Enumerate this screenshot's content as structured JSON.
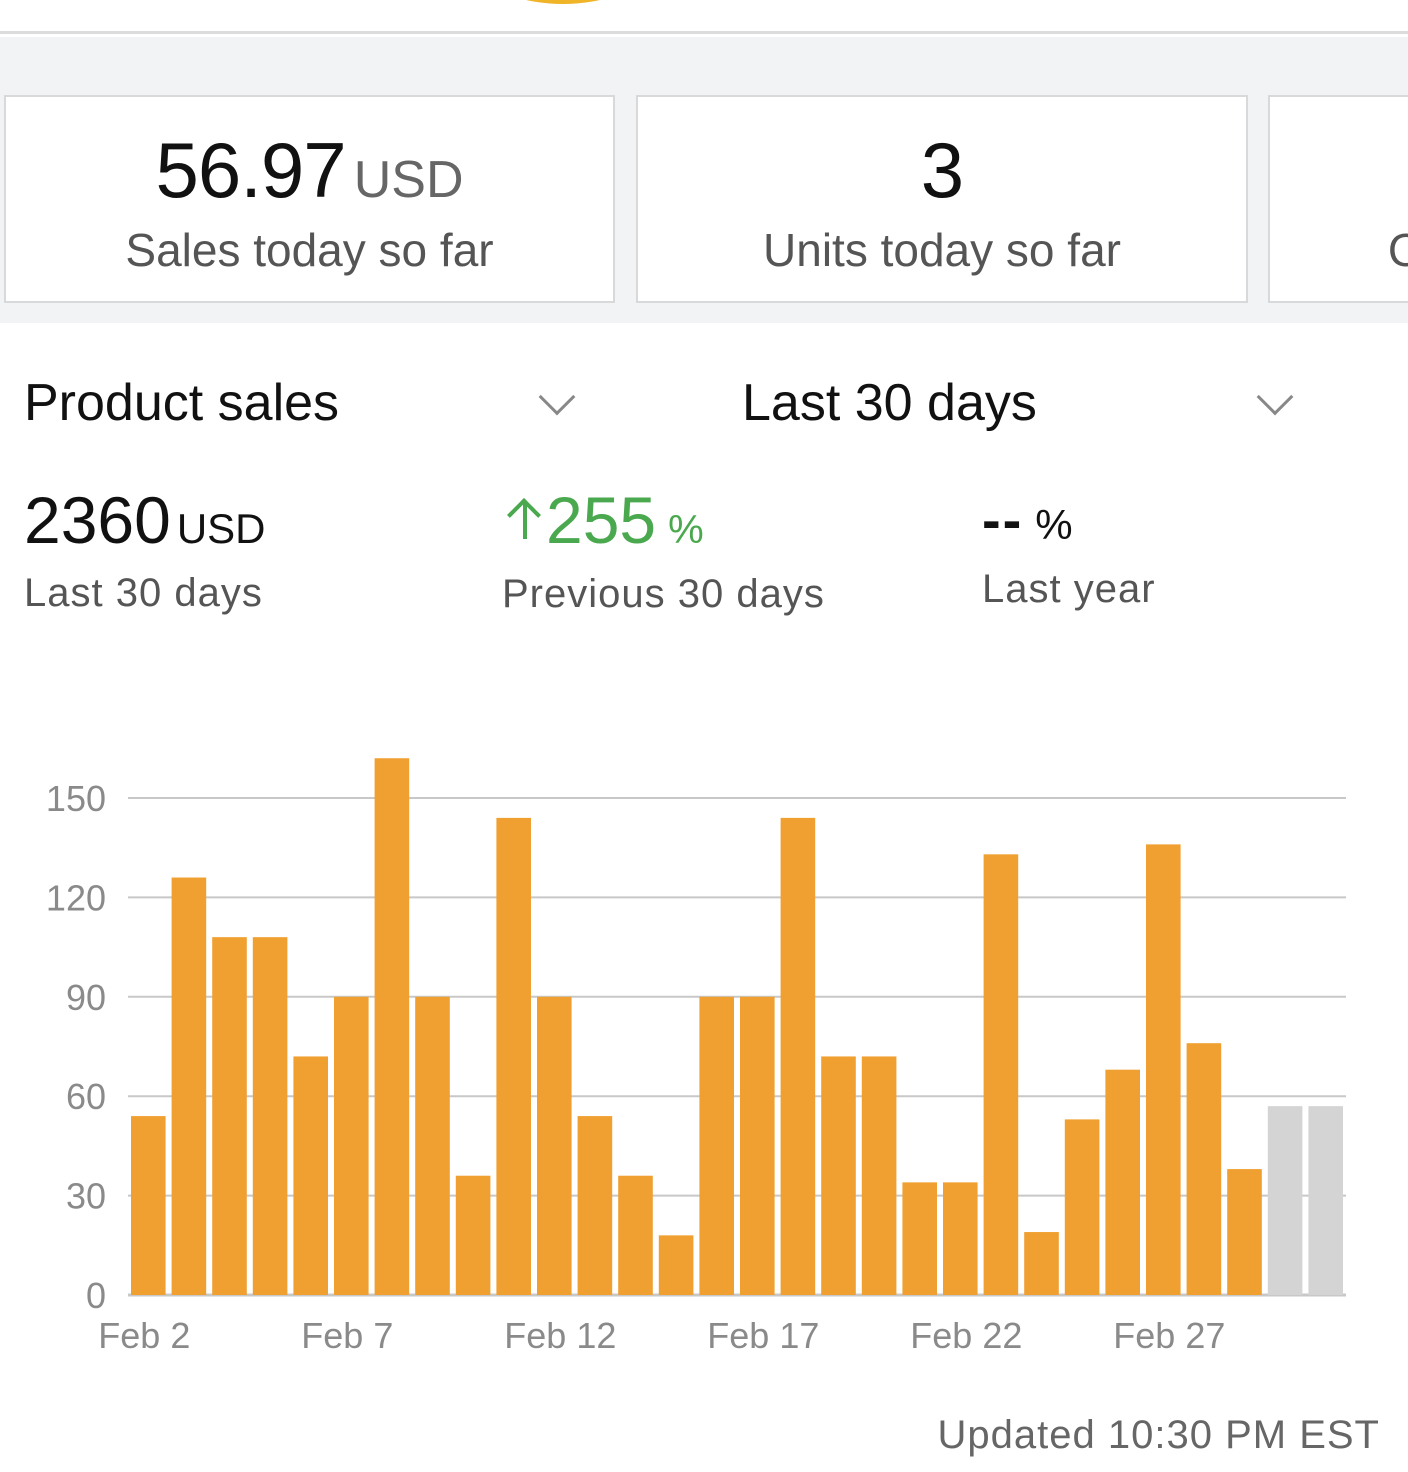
{
  "header": {
    "logo_icon": "smile-arc-icon"
  },
  "metrics": [
    {
      "value": "56.97",
      "unit": "USD",
      "label": "Sales today so far"
    },
    {
      "value": "3",
      "unit": "",
      "label": "Units today so far"
    },
    {
      "value": "",
      "unit": "",
      "label": "O"
    }
  ],
  "selectors": {
    "metric": {
      "label": "Product sales",
      "icon": "chevron-down-icon"
    },
    "range": {
      "label": "Last 30 days",
      "icon": "chevron-down-icon"
    }
  },
  "summary": {
    "total": {
      "value": "2360",
      "unit": "USD",
      "label": "Last 30 days"
    },
    "change": {
      "value": "255",
      "unit": "%",
      "label": "Previous 30 days",
      "direction": "up",
      "color": "#4aa84e"
    },
    "yoy": {
      "value": "--",
      "unit": "%",
      "label": "Last year"
    }
  },
  "chart_data": {
    "type": "bar",
    "categories": [
      "Feb 2",
      "Feb 3",
      "Feb 4",
      "Feb 5",
      "Feb 6",
      "Feb 7",
      "Feb 8",
      "Feb 9",
      "Feb 10",
      "Feb 11",
      "Feb 12",
      "Feb 13",
      "Feb 14",
      "Feb 15",
      "Feb 16",
      "Feb 17",
      "Feb 18",
      "Feb 19",
      "Feb 20",
      "Feb 21",
      "Feb 22",
      "Feb 23",
      "Feb 24",
      "Feb 25",
      "Feb 26",
      "Feb 27",
      "Feb 28",
      "Feb 29",
      "Mar 1",
      "Mar 2"
    ],
    "xtick_labels": [
      "Feb 2",
      "Feb 7",
      "Feb 12",
      "Feb 17",
      "Feb 22",
      "Feb 27"
    ],
    "values": [
      54,
      126,
      108,
      108,
      72,
      90,
      162,
      90,
      36,
      144,
      90,
      54,
      36,
      18,
      90,
      90,
      144,
      72,
      72,
      34,
      34,
      133,
      19,
      53,
      68,
      136,
      76,
      38,
      57,
      57
    ],
    "highlight": [
      true,
      true,
      true,
      true,
      true,
      true,
      true,
      true,
      true,
      true,
      true,
      true,
      true,
      true,
      true,
      true,
      true,
      true,
      true,
      true,
      true,
      true,
      true,
      true,
      true,
      true,
      true,
      true,
      false,
      false
    ],
    "yticks": [
      0,
      30,
      60,
      90,
      120,
      150
    ],
    "ylim": [
      0,
      162
    ],
    "grid": true,
    "colors": {
      "bar": "#f0a030",
      "projected": "#d4d4d4",
      "grid": "#c8c8c8"
    },
    "title": "",
    "xlabel": "",
    "ylabel": ""
  },
  "footer": {
    "updated": "Updated 10:30 PM EST"
  }
}
